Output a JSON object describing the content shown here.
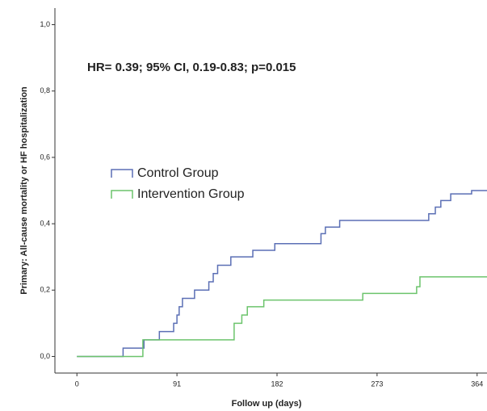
{
  "chart_data": {
    "type": "step",
    "annotation": "HR= 0.39; 95% CI, 0.19-0.83; p=0.015",
    "x_label": "Follow up (days)",
    "y_label": "Primary: All-cause mortality or HF hospitalization",
    "xlim": [
      -20,
      373
    ],
    "ylim": [
      -0.05,
      1.05
    ],
    "xticks": [
      0,
      91,
      182,
      273,
      364
    ],
    "yticks": [
      {
        "value": 0,
        "label": "0,0"
      },
      {
        "value": 0.2,
        "label": "0,2"
      },
      {
        "value": 0.4,
        "label": "0,4"
      },
      {
        "value": 0.6,
        "label": "0,6"
      },
      {
        "value": 0.8,
        "label": "0,8"
      },
      {
        "value": 1,
        "label": "1,0"
      }
    ],
    "series": [
      {
        "name": "Control Group",
        "color": "#5b6fb5",
        "x": [
          0,
          42,
          61,
          75,
          88,
          91,
          93,
          96,
          107,
          120,
          124,
          128,
          140,
          160,
          180,
          222,
          226,
          239,
          320,
          326,
          331,
          340,
          359,
          373
        ],
        "values": [
          0,
          0.025,
          0.05,
          0.075,
          0.1,
          0.125,
          0.15,
          0.175,
          0.2,
          0.225,
          0.25,
          0.275,
          0.3,
          0.32,
          0.34,
          0.37,
          0.39,
          0.41,
          0.43,
          0.45,
          0.47,
          0.49,
          0.5,
          0.5
        ]
      },
      {
        "name": "Intervention Group",
        "color": "#6cc46c",
        "x": [
          0,
          60,
          143,
          150,
          155,
          170,
          260,
          309,
          312,
          373
        ],
        "values": [
          0,
          0.05,
          0.1,
          0.125,
          0.15,
          0.17,
          0.19,
          0.21,
          0.24,
          0.24
        ]
      }
    ]
  }
}
